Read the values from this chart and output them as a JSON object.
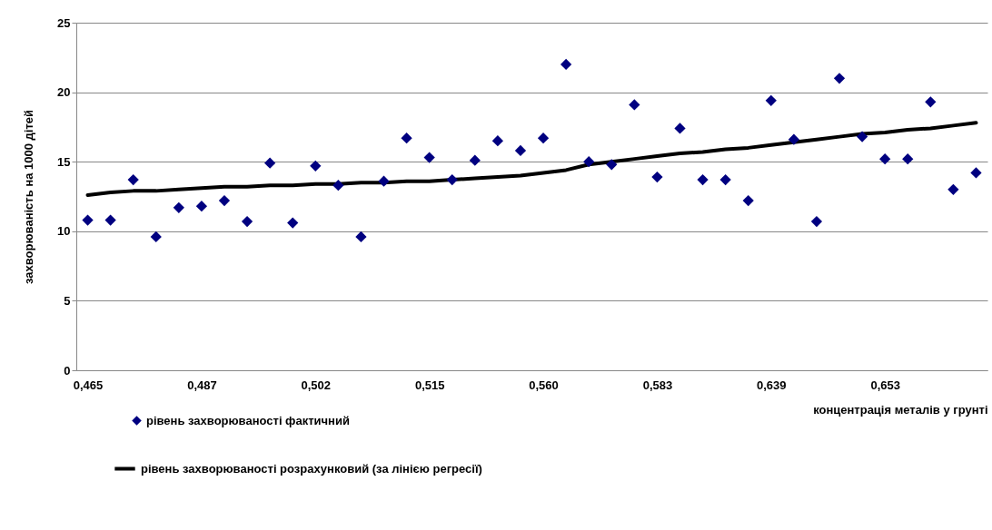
{
  "chart_data": {
    "type": "scatter",
    "xlabel": "концентрація металів у грунті",
    "ylabel": "захворюваність на 1000 дітей",
    "categories": [
      "0,465",
      null,
      null,
      null,
      null,
      "0,487",
      null,
      null,
      null,
      null,
      "0,502",
      null,
      null,
      null,
      null,
      "0,515",
      null,
      null,
      null,
      null,
      "0,560",
      null,
      null,
      null,
      null,
      "0,583",
      null,
      null,
      null,
      null,
      "0,639",
      null,
      null,
      null,
      null,
      "0,653",
      null,
      null,
      null,
      null
    ],
    "series": [
      {
        "name": "рівень захворюваності фактичний",
        "marker": "diamond",
        "color": "#000080",
        "values": [
          10.8,
          10.8,
          13.7,
          9.6,
          11.7,
          11.8,
          12.2,
          10.7,
          14.9,
          10.6,
          14.7,
          13.3,
          9.6,
          13.6,
          16.7,
          15.3,
          13.7,
          15.1,
          16.5,
          15.8,
          16.7,
          22.0,
          15.0,
          14.8,
          19.1,
          13.9,
          17.4,
          13.7,
          13.7,
          12.2,
          19.4,
          16.6,
          10.7,
          21.0,
          16.8,
          15.2,
          15.2,
          19.3,
          13.0,
          14.2
        ]
      },
      {
        "name": "рівень захворюваності розрахунковий (за лінією регресії)",
        "type": "line",
        "color": "#000000",
        "values": [
          12.6,
          12.8,
          12.9,
          12.9,
          13.0,
          13.1,
          13.2,
          13.2,
          13.3,
          13.3,
          13.4,
          13.4,
          13.5,
          13.5,
          13.6,
          13.6,
          13.7,
          13.8,
          13.9,
          14.0,
          14.2,
          14.4,
          14.8,
          15.0,
          15.2,
          15.4,
          15.6,
          15.7,
          15.9,
          16.0,
          16.2,
          16.4,
          16.6,
          16.8,
          17.0,
          17.1,
          17.3,
          17.4,
          17.6,
          17.8
        ]
      }
    ],
    "ylim": [
      0,
      25
    ],
    "yticks": [
      0,
      5,
      10,
      15,
      20,
      25
    ],
    "grid": "y",
    "legend": "bottom left",
    "line_style": "solid"
  }
}
